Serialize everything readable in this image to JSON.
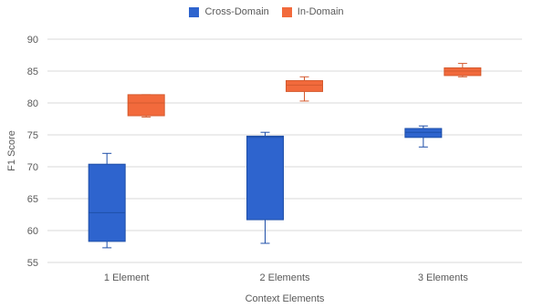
{
  "chart_data": {
    "type": "boxplot",
    "title": "",
    "xlabel": "Context Elements",
    "ylabel": "F1 Score",
    "ylim": [
      55,
      90
    ],
    "yticks": [
      55,
      60,
      65,
      70,
      75,
      80,
      85,
      90
    ],
    "grid": true,
    "legend_position": "top",
    "categories": [
      "1 Element",
      "2 Elements",
      "3 Elements"
    ],
    "series": [
      {
        "name": "Cross-Domain",
        "color": "#2E64CE",
        "stroke": "#1F4FA8",
        "boxes": [
          {
            "min": 57.3,
            "q1": 58.3,
            "median": 62.8,
            "q3": 70.4,
            "max": 72.1
          },
          {
            "min": 58.0,
            "q1": 61.7,
            "median": 74.6,
            "q3": 74.8,
            "max": 75.4
          },
          {
            "min": 73.1,
            "q1": 74.6,
            "median": 75.4,
            "q3": 76.0,
            "max": 76.4
          }
        ]
      },
      {
        "name": "In-Domain",
        "color": "#F26A3C",
        "stroke": "#D45A2E",
        "boxes": [
          {
            "min": 77.8,
            "q1": 78.0,
            "median": 80.0,
            "q3": 81.3,
            "max": 81.3
          },
          {
            "min": 80.3,
            "q1": 81.8,
            "median": 82.8,
            "q3": 83.5,
            "max": 84.1
          },
          {
            "min": 84.1,
            "q1": 84.3,
            "median": 85.0,
            "q3": 85.5,
            "max": 86.2
          }
        ]
      }
    ]
  }
}
